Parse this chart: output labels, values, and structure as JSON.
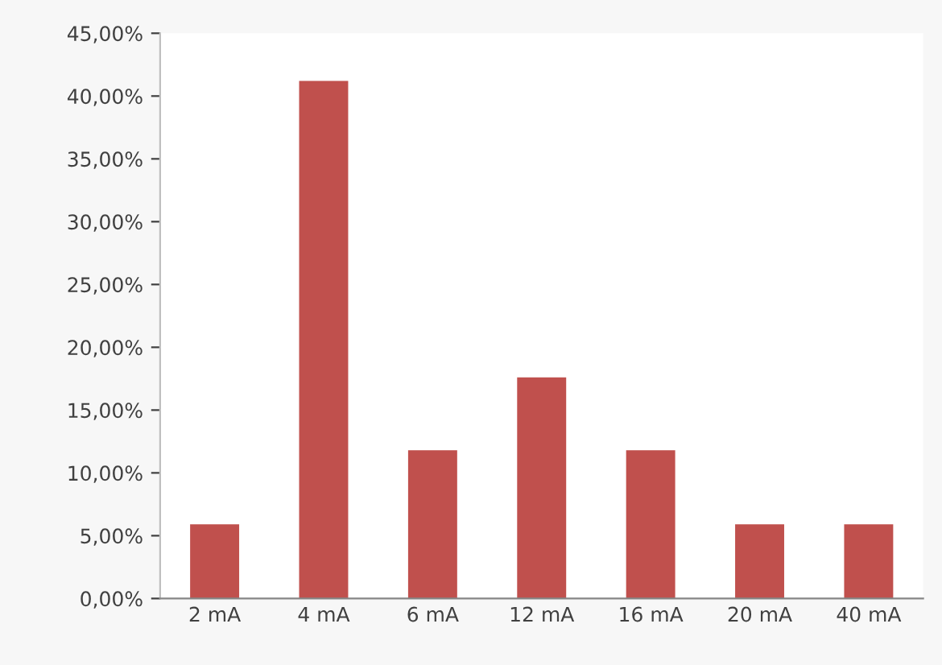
{
  "chart_data": {
    "type": "bar",
    "categories": [
      "2 mA",
      "4 mA",
      "6 mA",
      "12 mA",
      "16 mA",
      "20 mA",
      "40 mA"
    ],
    "values": [
      5.9,
      41.2,
      11.8,
      17.6,
      11.8,
      5.9,
      5.9
    ],
    "color": "#c0504d",
    "ylim": [
      0,
      45
    ],
    "yticks": [
      {
        "value": 0,
        "label": "0,00%"
      },
      {
        "value": 5,
        "label": "5,00%"
      },
      {
        "value": 10,
        "label": "10,00%"
      },
      {
        "value": 15,
        "label": "15,00%"
      },
      {
        "value": 20,
        "label": "20,00%"
      },
      {
        "value": 25,
        "label": "25,00%"
      },
      {
        "value": 30,
        "label": "30,00%"
      },
      {
        "value": 35,
        "label": "35,00%"
      },
      {
        "value": 40,
        "label": "40,00%"
      },
      {
        "value": 45,
        "label": "45,00%"
      }
    ],
    "grid": false,
    "legend": false
  }
}
